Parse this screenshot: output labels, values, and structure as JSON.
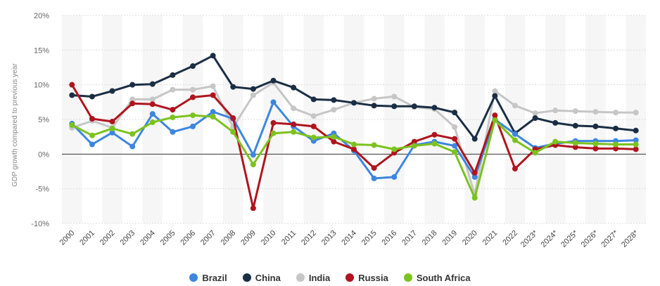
{
  "chart_data": {
    "type": "line",
    "ylabel": "GDP growth compared to previous year",
    "ylim": [
      -10,
      20
    ],
    "yticks": [
      "-10%",
      "-5%",
      "0%",
      "5%",
      "10%",
      "15%",
      "20%"
    ],
    "ytick_values": [
      -10,
      -5,
      0,
      5,
      10,
      15,
      20
    ],
    "categories": [
      "2000",
      "2001",
      "2002",
      "2003",
      "2004",
      "2005",
      "2006",
      "2007",
      "2008",
      "2009",
      "2010",
      "2011",
      "2012",
      "2013",
      "2014",
      "2015",
      "2016",
      "2017",
      "2018",
      "2019",
      "2020",
      "2021",
      "2022",
      "2023*",
      "2024*",
      "2025*",
      "2026*",
      "2027*",
      "2028*"
    ],
    "grid": true,
    "legend_position": "bottom",
    "series": [
      {
        "name": "Brazil",
        "color": "#3d86e0",
        "values": [
          4.4,
          1.4,
          3.1,
          1.1,
          5.8,
          3.2,
          4.0,
          6.1,
          5.1,
          -0.1,
          7.5,
          4.0,
          1.9,
          3.0,
          0.5,
          -3.5,
          -3.3,
          1.3,
          1.8,
          1.2,
          -3.3,
          5.0,
          2.9,
          0.9,
          1.5,
          1.9,
          1.9,
          1.9,
          2.0
        ]
      },
      {
        "name": "China",
        "color": "#1a2e44",
        "values": [
          8.5,
          8.3,
          9.1,
          10.0,
          10.1,
          11.4,
          12.7,
          14.2,
          9.7,
          9.4,
          10.6,
          9.6,
          7.9,
          7.8,
          7.4,
          7.0,
          6.9,
          6.9,
          6.7,
          6.0,
          2.2,
          8.4,
          3.0,
          5.2,
          4.5,
          4.1,
          4.0,
          3.7,
          3.4
        ]
      },
      {
        "name": "India",
        "color": "#c6c6c6",
        "values": [
          3.8,
          4.8,
          3.8,
          7.9,
          7.9,
          9.3,
          9.3,
          9.8,
          3.9,
          8.5,
          10.3,
          6.6,
          5.5,
          6.4,
          7.4,
          8.0,
          8.3,
          6.8,
          6.5,
          3.9,
          -5.8,
          9.1,
          7.0,
          5.9,
          6.3,
          6.2,
          6.1,
          6.0,
          6.0
        ]
      },
      {
        "name": "Russia",
        "color": "#b0141e",
        "values": [
          10.0,
          5.1,
          4.7,
          7.3,
          7.2,
          6.4,
          8.2,
          8.5,
          5.2,
          -7.8,
          4.5,
          4.3,
          4.0,
          1.8,
          0.7,
          -2.0,
          0.2,
          1.8,
          2.8,
          2.2,
          -2.7,
          5.6,
          -2.1,
          0.7,
          1.3,
          1.0,
          0.8,
          0.8,
          0.7
        ]
      },
      {
        "name": "South Africa",
        "color": "#7cc21e",
        "values": [
          4.2,
          2.7,
          3.7,
          2.9,
          4.6,
          5.3,
          5.6,
          5.4,
          3.2,
          -1.5,
          3.0,
          3.2,
          2.4,
          2.5,
          1.4,
          1.3,
          0.7,
          1.2,
          1.5,
          0.3,
          -6.3,
          4.9,
          2.0,
          0.2,
          1.8,
          1.6,
          1.5,
          1.4,
          1.4
        ]
      }
    ]
  }
}
